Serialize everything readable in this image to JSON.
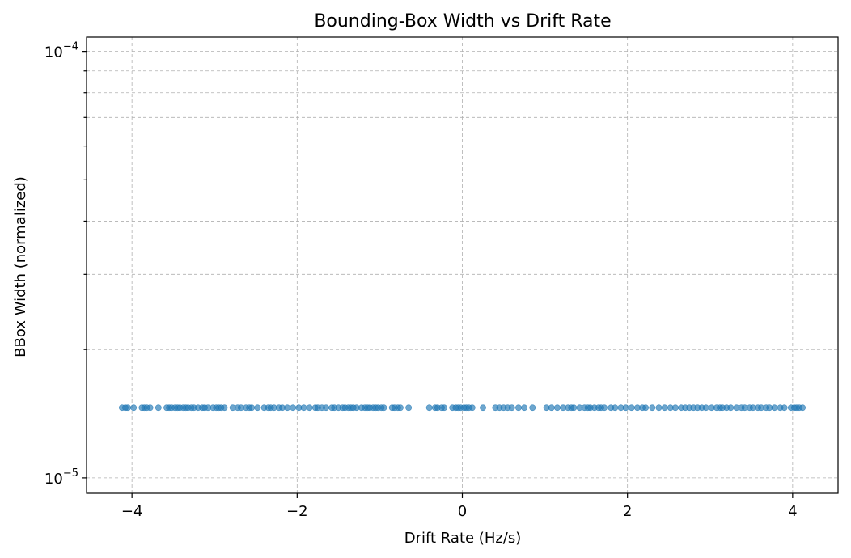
{
  "chart_data": {
    "type": "scatter",
    "title": "Bounding-Box Width vs Drift Rate",
    "xlabel": "Drift Rate (Hz/s)",
    "ylabel": "BBox Width (normalized)",
    "xlim": [
      -4.55,
      4.55
    ],
    "ylim": [
      9.2e-06,
      0.000108
    ],
    "yscale": "log",
    "grid": true,
    "point_color": "#1f77b4",
    "x_ticks": [
      {
        "value": -4,
        "label": "−4"
      },
      {
        "value": -2,
        "label": "−2"
      },
      {
        "value": 0,
        "label": "0"
      },
      {
        "value": 2,
        "label": "2"
      },
      {
        "value": 4,
        "label": "4"
      }
    ],
    "y_major_ticks": [
      {
        "value": 1e-05,
        "base": "10",
        "exponent": "−5"
      },
      {
        "value": 0.0001,
        "base": "10",
        "exponent": "−4"
      }
    ],
    "y_minor_ticks": [
      2e-05,
      3e-05,
      4e-05,
      5e-05,
      6e-05,
      7e-05,
      8e-05,
      9e-05
    ],
    "y_value": 1.46e-05,
    "x": [
      -4.12,
      -4.08,
      -4.05,
      -3.98,
      -3.88,
      -3.85,
      -3.82,
      -3.78,
      -3.68,
      -3.58,
      -3.55,
      -3.52,
      -3.48,
      -3.45,
      -3.42,
      -3.38,
      -3.35,
      -3.32,
      -3.28,
      -3.25,
      -3.2,
      -3.15,
      -3.12,
      -3.08,
      -3.02,
      -2.98,
      -2.95,
      -2.92,
      -2.88,
      -2.78,
      -2.72,
      -2.68,
      -2.62,
      -2.58,
      -2.55,
      -2.48,
      -2.4,
      -2.35,
      -2.32,
      -2.28,
      -2.22,
      -2.18,
      -2.12,
      -2.05,
      -1.98,
      -1.92,
      -1.85,
      -1.78,
      -1.75,
      -1.7,
      -1.65,
      -1.58,
      -1.55,
      -1.5,
      -1.45,
      -1.42,
      -1.38,
      -1.35,
      -1.32,
      -1.28,
      -1.22,
      -1.18,
      -1.15,
      -1.12,
      -1.08,
      -1.05,
      -1.02,
      -0.98,
      -0.95,
      -0.85,
      -0.82,
      -0.78,
      -0.75,
      -0.65,
      -0.4,
      -0.33,
      -0.3,
      -0.25,
      -0.22,
      -0.12,
      -0.08,
      -0.05,
      -0.02,
      0.02,
      0.05,
      0.08,
      0.12,
      0.25,
      0.4,
      0.45,
      0.5,
      0.55,
      0.6,
      0.68,
      0.75,
      0.85,
      1.02,
      1.08,
      1.15,
      1.22,
      1.28,
      1.32,
      1.35,
      1.42,
      1.48,
      1.52,
      1.55,
      1.6,
      1.65,
      1.68,
      1.72,
      1.8,
      1.85,
      1.92,
      1.98,
      2.05,
      2.12,
      2.18,
      2.22,
      2.3,
      2.38,
      2.45,
      2.52,
      2.58,
      2.65,
      2.7,
      2.75,
      2.8,
      2.85,
      2.9,
      2.95,
      3.02,
      3.08,
      3.12,
      3.15,
      3.2,
      3.25,
      3.32,
      3.38,
      3.42,
      3.48,
      3.52,
      3.58,
      3.62,
      3.68,
      3.72,
      3.78,
      3.85,
      3.9,
      3.98,
      4.02,
      4.05,
      4.08,
      4.12
    ]
  }
}
